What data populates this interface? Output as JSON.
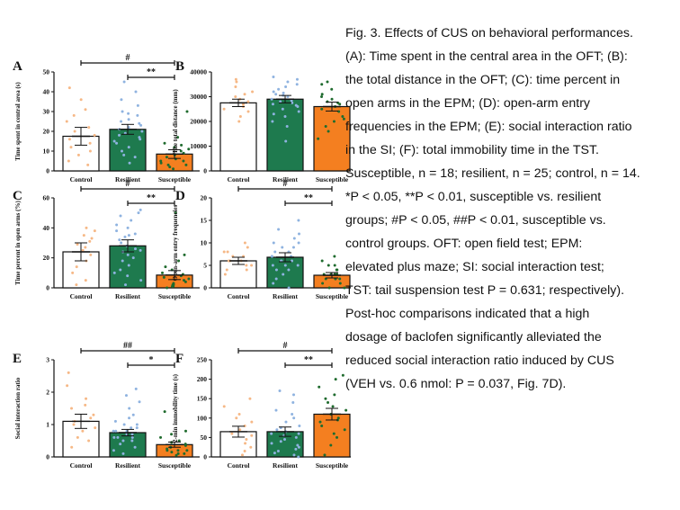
{
  "colors": {
    "control_fill": "#ffffff",
    "resilient_fill": "#1e7a4e",
    "susceptible_fill": "#f47f20",
    "control_dots": "#f6b886",
    "resilient_dots": "#8fb3e0",
    "susceptible_dots": "#1f6b2e",
    "axis": "#111111"
  },
  "caption": {
    "lines": [
      "Fig. 3. Effects of CUS on behavioral performances.",
      "(A): Time spent in the central area in the OFT; (B):",
      "the total distance in the OFT; (C): time percent in",
      "open arms in the EPM; (D): open-arm entry",
      "frequencies in the EPM; (E): social interaction ratio",
      "in the SI; (F): total immobility time in the TST.",
      "Susceptible, n = 18; resilient, n = 25; control, n = 14.",
      "*P < 0.05, **P < 0.01, susceptible vs. resilient",
      "groups; #P < 0.05, ##P < 0.01, susceptible vs.",
      "control groups. OFT: open field test; EPM:",
      "elevated plus maze; SI: social interaction test;",
      "TST: tail suspension test P = 0.631; respectively).",
      "Post-hoc comparisons indicated that a high",
      "dosage of baclofen significantly alleviated the",
      "reduced social interaction ratio induced by CUS",
      "(VEH vs. 0.6 nmol: P = 0.037, Fig. 7D)."
    ]
  },
  "chart_data": [
    {
      "panel": "A",
      "type": "bar",
      "categories": [
        "Control",
        "Resilient",
        "Susceptible"
      ],
      "values": [
        17.5,
        21,
        8.5
      ],
      "errors": [
        4.5,
        2.5,
        2.2
      ],
      "ylabel": "Time spent in central area (s)",
      "ylim": [
        0,
        50
      ],
      "yticks": [
        0,
        10,
        20,
        30,
        40,
        50
      ],
      "grid": false,
      "points": [
        [
          3,
          5,
          8,
          10,
          12,
          14,
          16,
          18,
          20,
          22,
          25,
          28,
          31,
          36,
          42
        ],
        [
          4,
          8,
          10,
          12,
          14,
          15,
          17,
          18,
          19,
          20,
          21,
          22,
          23,
          24,
          25,
          26,
          28,
          30,
          33,
          36,
          40,
          45,
          7,
          16,
          29
        ],
        [
          1,
          2,
          3,
          4,
          5,
          5,
          6,
          7,
          8,
          9,
          10,
          11,
          12,
          13,
          14,
          17,
          30,
          3
        ]
      ],
      "significance": [
        {
          "label": "#",
          "from": 0,
          "to": 2
        },
        {
          "label": "**",
          "from": 1,
          "to": 2
        }
      ]
    },
    {
      "panel": "B",
      "type": "bar",
      "categories": [
        "Control",
        "Resilient",
        "Susceptible"
      ],
      "values": [
        27500,
        29000,
        26000
      ],
      "errors": [
        1500,
        1500,
        1800
      ],
      "ylabel": "The total distance (mm)",
      "ylim": [
        0,
        40000
      ],
      "yticks": [
        0,
        10000,
        20000,
        30000,
        40000
      ],
      "grid": false,
      "points": [
        [
          20000,
          22000,
          24000,
          25000,
          26000,
          27000,
          28000,
          29000,
          30000,
          31000,
          32000,
          34000,
          36000,
          37000
        ],
        [
          12000,
          18000,
          20000,
          22000,
          24000,
          25000,
          26000,
          27000,
          28000,
          29000,
          30000,
          31000,
          32000,
          33000,
          34000,
          35000,
          36000,
          37000,
          38000,
          26500,
          28500,
          30500,
          31500,
          23000,
          27500
        ],
        [
          13000,
          16000,
          18000,
          20000,
          22000,
          24000,
          25000,
          26000,
          27000,
          28000,
          29000,
          30000,
          31000,
          33000,
          35000,
          36000,
          21000,
          27500
        ]
      ],
      "significance": []
    },
    {
      "panel": "C",
      "type": "bar",
      "categories": [
        "Control",
        "Resilient",
        "Susceptible"
      ],
      "values": [
        24,
        28,
        8.5
      ],
      "errors": [
        6,
        4,
        3
      ],
      "ylabel": "Time percent in open arms (%)",
      "ylim": [
        0,
        60
      ],
      "yticks": [
        0,
        20,
        40,
        60
      ],
      "grid": false,
      "points": [
        [
          2,
          5,
          10,
          14,
          18,
          22,
          25,
          27,
          29,
          31,
          33,
          35,
          38,
          40
        ],
        [
          2,
          5,
          8,
          12,
          15,
          18,
          20,
          22,
          24,
          26,
          28,
          30,
          32,
          34,
          36,
          38,
          40,
          42,
          45,
          48,
          50,
          52,
          10,
          25,
          35
        ],
        [
          0,
          1,
          2,
          2,
          3,
          4,
          5,
          6,
          7,
          8,
          9,
          10,
          12,
          14,
          18,
          22,
          50,
          1
        ]
      ],
      "significance": [
        {
          "label": "#",
          "from": 0,
          "to": 2
        },
        {
          "label": "**",
          "from": 1,
          "to": 2
        }
      ]
    },
    {
      "panel": "D",
      "type": "bar",
      "categories": [
        "Control",
        "Resilient",
        "Susceptible"
      ],
      "values": [
        6,
        6.8,
        2.8
      ],
      "errors": [
        0.8,
        1,
        0.6
      ],
      "ylabel": "Open-arm entry frequencies",
      "ylim": [
        0,
        20
      ],
      "yticks": [
        0,
        5,
        10,
        15,
        20
      ],
      "grid": false,
      "points": [
        [
          3,
          4,
          4,
          5,
          5,
          6,
          6,
          6,
          7,
          7,
          8,
          8,
          9,
          10
        ],
        [
          0,
          1,
          2,
          3,
          4,
          4,
          5,
          5,
          6,
          6,
          7,
          7,
          8,
          8,
          9,
          9,
          10,
          10,
          11,
          12,
          13,
          15,
          6,
          7,
          5
        ],
        [
          0,
          0,
          1,
          1,
          2,
          2,
          2,
          3,
          3,
          3,
          3,
          4,
          4,
          5,
          5,
          6,
          7,
          2
        ]
      ],
      "significance": [
        {
          "label": "#",
          "from": 0,
          "to": 2
        },
        {
          "label": "**",
          "from": 1,
          "to": 2
        }
      ]
    },
    {
      "panel": "E",
      "type": "bar",
      "categories": [
        "Control",
        "Resilient",
        "Susceptible"
      ],
      "values": [
        1.1,
        0.75,
        0.38
      ],
      "errors": [
        0.22,
        0.1,
        0.08
      ],
      "ylabel": "Social interaction ratio",
      "ylim": [
        0,
        3
      ],
      "yticks": [
        0,
        1,
        2,
        3
      ],
      "grid": false,
      "points": [
        [
          0.3,
          0.5,
          0.6,
          0.8,
          0.9,
          1.0,
          1.1,
          1.2,
          1.3,
          1.5,
          1.6,
          1.8,
          2.2,
          2.6
        ],
        [
          0.1,
          0.2,
          0.3,
          0.4,
          0.5,
          0.5,
          0.6,
          0.6,
          0.7,
          0.7,
          0.8,
          0.8,
          0.9,
          0.9,
          1.0,
          1.0,
          1.1,
          1.2,
          1.3,
          1.5,
          1.7,
          1.9,
          2.1,
          0.6,
          0.8
        ],
        [
          0.05,
          0.1,
          0.1,
          0.15,
          0.2,
          0.2,
          0.25,
          0.3,
          0.3,
          0.35,
          0.4,
          0.45,
          0.5,
          0.6,
          0.7,
          0.8,
          1.4,
          0.2
        ]
      ],
      "significance": [
        {
          "label": "##",
          "from": 0,
          "to": 2
        },
        {
          "label": "*",
          "from": 1,
          "to": 2
        }
      ]
    },
    {
      "panel": "F",
      "type": "bar",
      "categories": [
        "Control",
        "Resilient",
        "Susceptible"
      ],
      "values": [
        65,
        65,
        110
      ],
      "errors": [
        14,
        12,
        15
      ],
      "ylabel": "2-min immobility time (s)",
      "ylim": [
        0,
        250
      ],
      "yticks": [
        0,
        50,
        100,
        150,
        200,
        250
      ],
      "grid": false,
      "points": [
        [
          5,
          15,
          25,
          35,
          45,
          55,
          60,
          70,
          80,
          90,
          100,
          110,
          130,
          150
        ],
        [
          0,
          5,
          10,
          15,
          20,
          25,
          30,
          35,
          40,
          45,
          50,
          55,
          60,
          65,
          70,
          75,
          80,
          90,
          100,
          110,
          120,
          140,
          160,
          170,
          60
        ],
        [
          5,
          30,
          50,
          60,
          70,
          80,
          90,
          100,
          110,
          120,
          130,
          140,
          150,
          160,
          180,
          200,
          210,
          95
        ]
      ],
      "significance": [
        {
          "label": "#",
          "from": 0,
          "to": 2
        },
        {
          "label": "**",
          "from": 1,
          "to": 2
        }
      ]
    }
  ]
}
